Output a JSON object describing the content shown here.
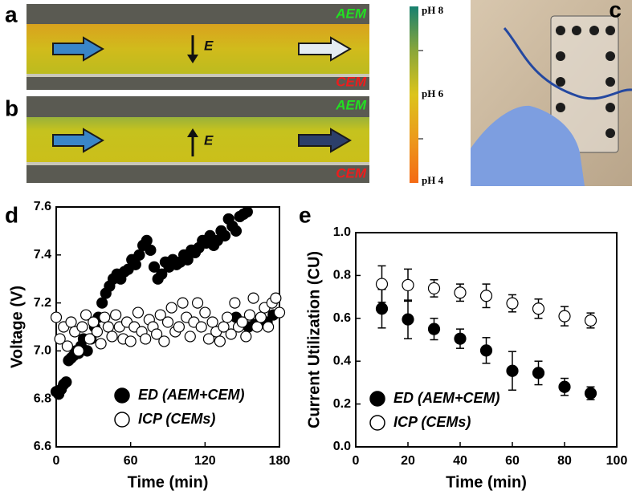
{
  "panels": {
    "a": {
      "letter": "a",
      "top_label": "AEM",
      "bottom_label": "CEM",
      "field_label": "E"
    },
    "b": {
      "letter": "b",
      "top_label": "AEM",
      "bottom_label": "CEM",
      "field_label": "E"
    },
    "c": {
      "letter": "c"
    },
    "colorbar": {
      "top": "pH 8",
      "middle": "pH 6",
      "bottom": "pH 4"
    }
  },
  "chart_data": [
    {
      "type": "scatter",
      "letter": "d",
      "xlabel": "Time (min)",
      "ylabel": "Voltage (V)",
      "xlim": [
        0,
        180
      ],
      "xticks": [
        0,
        60,
        120,
        180
      ],
      "ylim": [
        6.6,
        7.6
      ],
      "yticks": [
        6.6,
        6.8,
        {
          "value": 7,
          "label": "7.0"
        },
        7.2,
        7.4,
        7.6
      ],
      "series": [
        {
          "name": "ED (AEM+CEM)",
          "color": "#000000",
          "x": [
            0,
            2,
            4,
            6,
            8,
            10,
            12,
            14,
            16,
            18,
            20,
            22,
            25,
            28,
            31,
            34,
            37,
            40,
            43,
            46,
            49,
            52,
            55,
            58,
            61,
            64,
            67,
            70,
            73,
            76,
            79,
            82,
            85,
            88,
            91,
            94,
            97,
            100,
            103,
            106,
            109,
            112,
            115,
            118,
            121,
            124,
            127,
            130,
            133,
            136,
            139,
            142,
            145,
            148,
            151,
            154,
            145,
            150,
            155,
            160,
            165,
            170,
            175
          ],
          "values": [
            6.83,
            6.82,
            6.84,
            6.86,
            6.87,
            6.96,
            6.97,
            6.98,
            7.0,
            6.99,
            7.02,
            7.05,
            7.0,
            7.05,
            7.1,
            7.14,
            7.2,
            7.24,
            7.27,
            7.3,
            7.32,
            7.3,
            7.33,
            7.34,
            7.38,
            7.36,
            7.4,
            7.44,
            7.46,
            7.42,
            7.35,
            7.3,
            7.32,
            7.37,
            7.35,
            7.38,
            7.36,
            7.37,
            7.4,
            7.38,
            7.42,
            7.41,
            7.43,
            7.46,
            7.45,
            7.48,
            7.44,
            7.46,
            7.5,
            7.48,
            7.55,
            7.52,
            7.5,
            7.56,
            7.57,
            7.58,
            7.14,
            7.12,
            7.1,
            7.11,
            7.13,
            7.12,
            7.15
          ]
        },
        {
          "name": "ICP (CEMs)",
          "color": "#ffffff",
          "x": [
            0,
            3,
            6,
            9,
            12,
            15,
            18,
            21,
            24,
            27,
            30,
            33,
            36,
            39,
            42,
            45,
            48,
            51,
            54,
            57,
            60,
            63,
            66,
            69,
            72,
            75,
            78,
            81,
            84,
            87,
            90,
            93,
            96,
            99,
            102,
            105,
            108,
            111,
            114,
            117,
            120,
            123,
            126,
            129,
            132,
            135,
            138,
            141,
            144,
            147,
            150,
            153,
            156,
            159,
            162,
            165,
            168,
            171,
            174,
            177,
            180
          ],
          "values": [
            7.14,
            7.05,
            7.1,
            7.02,
            7.12,
            7.08,
            7.0,
            7.1,
            7.15,
            7.05,
            7.12,
            7.08,
            7.03,
            7.14,
            7.1,
            7.06,
            7.15,
            7.1,
            7.05,
            7.12,
            7.04,
            7.1,
            7.16,
            7.08,
            7.05,
            7.13,
            7.1,
            7.07,
            7.15,
            7.04,
            7.12,
            7.18,
            7.08,
            7.1,
            7.2,
            7.14,
            7.06,
            7.12,
            7.2,
            7.1,
            7.16,
            7.05,
            7.12,
            7.08,
            7.04,
            7.1,
            7.14,
            7.07,
            7.2,
            7.1,
            7.12,
            7.06,
            7.15,
            7.22,
            7.1,
            7.14,
            7.18,
            7.1,
            7.2,
            7.22,
            7.16
          ]
        }
      ]
    },
    {
      "type": "errorbar",
      "letter": "e",
      "xlabel": "Time (min)",
      "ylabel": "Current Utilization (CU)",
      "xlim": [
        0,
        100
      ],
      "xticks": [
        0,
        20,
        40,
        60,
        80,
        100
      ],
      "ylim": [
        0,
        1
      ],
      "yticks": [
        {
          "value": 0,
          "label": "0.0"
        },
        0.2,
        0.4,
        0.6,
        0.8,
        {
          "value": 1,
          "label": "1.0"
        }
      ],
      "series": [
        {
          "name": "ED (AEM+CEM)",
          "color": "#000000",
          "x": [
            10,
            20,
            30,
            40,
            50,
            60,
            70,
            80,
            90
          ],
          "values": [
            0.645,
            0.595,
            0.55,
            0.505,
            0.45,
            0.355,
            0.345,
            0.28,
            0.25
          ],
          "errors": [
            0.09,
            0.09,
            0.05,
            0.045,
            0.06,
            0.09,
            0.055,
            0.04,
            0.03
          ]
        },
        {
          "name": "ICP (CEMs)",
          "color": "#ffffff",
          "x": [
            10,
            20,
            30,
            40,
            50,
            60,
            70,
            80,
            90
          ],
          "values": [
            0.76,
            0.755,
            0.74,
            0.72,
            0.705,
            0.67,
            0.645,
            0.61,
            0.59
          ],
          "errors": [
            0.085,
            0.075,
            0.04,
            0.04,
            0.055,
            0.04,
            0.045,
            0.045,
            0.035
          ]
        }
      ]
    }
  ]
}
